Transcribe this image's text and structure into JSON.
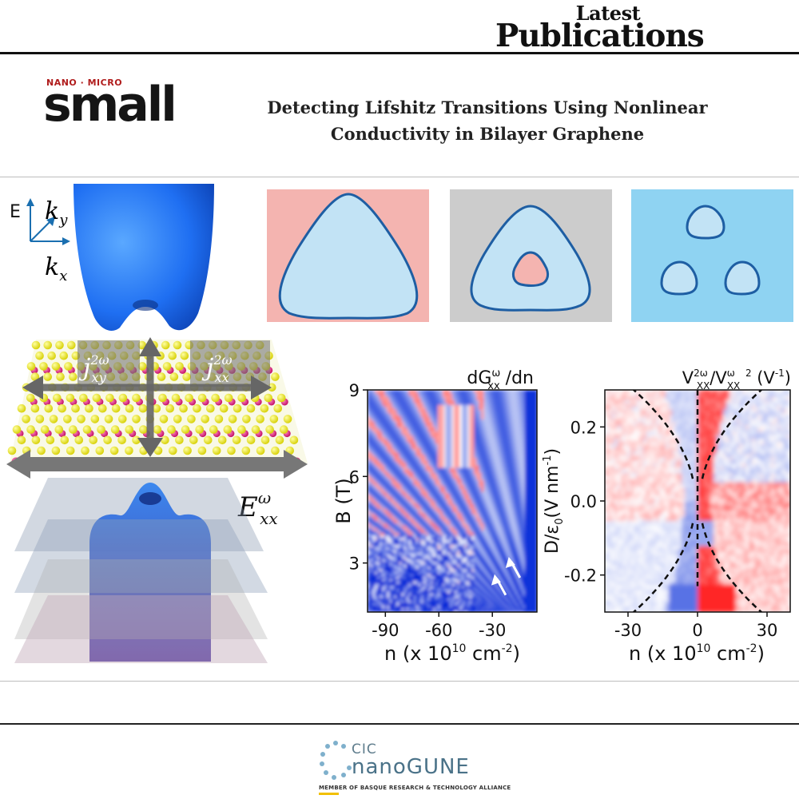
{
  "header": {
    "line1": "Latest",
    "line2": "Publications"
  },
  "journal": {
    "tagline": "NANO · MICRO",
    "name": "small"
  },
  "paper": {
    "title_line1": "Detecting Lifshitz Transitions Using Nonlinear",
    "title_line2": "Conductivity in Bilayer Graphene"
  },
  "schematic": {
    "energy_axis": "E",
    "ky_label": "k",
    "ky_sub": "y",
    "kx_label": "k",
    "kx_sub": "x",
    "jxy_label": "j",
    "jxy_sup": "2ω",
    "jxy_sub": "xy",
    "jxx_label": "j",
    "jxx_sup": "2ω",
    "jxx_sub": "xx",
    "exx_label": "E",
    "exx_sup": "ω",
    "exx_sub": "xx"
  },
  "fermi_panels": {
    "colors": {
      "pink": "#f4b4b0",
      "gray": "#cccccc",
      "blue": "#8fd3f2",
      "pocket": "#c2e3f5",
      "outline": "#1e5ea3"
    },
    "panels": [
      {
        "name": "single-pocket",
        "background": "pink"
      },
      {
        "name": "annulus",
        "background": "gray"
      },
      {
        "name": "three-pockets",
        "background": "blue"
      }
    ]
  },
  "chart_data": [
    {
      "type": "heatmap",
      "title_text": "dG",
      "title_sup": "ω",
      "title_sub": "xx",
      "title_tail": " /dn",
      "xlabel_text": "n (x 10",
      "xlabel_sup": "10",
      "xlabel_tail": " cm",
      "xlabel_sup2": "-2",
      "xlabel_end": ")",
      "ylabel": "B (T)",
      "xlim": [
        -100,
        -5
      ],
      "ylim": [
        1.3,
        9
      ],
      "xticks": [
        -90,
        -60,
        -30
      ],
      "yticks": [
        3,
        6,
        9
      ],
      "arrows": [
        {
          "x": -27,
          "y": 2.5
        },
        {
          "x": -19,
          "y": 3.1
        }
      ]
    },
    {
      "type": "heatmap",
      "title_text": "V",
      "title_sup": "2ω",
      "title_sub": "XX",
      "title_mid": "/V",
      "title_sup2": "ω",
      "title_sub2": "XX",
      "title_tail": " ",
      "title_sup3": "2",
      "title_unit": " (V",
      "title_unit_sup": "-1",
      "title_unit_end": ")",
      "xlabel_text": "n (x 10",
      "xlabel_sup": "10",
      "xlabel_tail": " cm",
      "xlabel_sup2": "-2",
      "xlabel_end": ")",
      "ylabel_text": "D/ε",
      "ylabel_sub": "0",
      "ylabel_tail": "(V nm",
      "ylabel_sup": "-1",
      "ylabel_end": ")",
      "xlim": [
        -40,
        40
      ],
      "ylim": [
        -0.3,
        0.3
      ],
      "xticks": [
        -30,
        0,
        30
      ],
      "yticks": [
        0.2,
        0.0,
        -0.2
      ],
      "ytick_labels": [
        "0.2",
        "0.0",
        "-0.2"
      ],
      "colors": {
        "positive": "#e02020",
        "negative": "#2040d0",
        "zero": "#ffffff"
      }
    }
  ],
  "footer": {
    "org_line1": "CIC",
    "org_line2": "nanoGUNE",
    "member": "MEMBER OF BASQUE RESEARCH & TECHNOLOGY ALLIANCE"
  }
}
